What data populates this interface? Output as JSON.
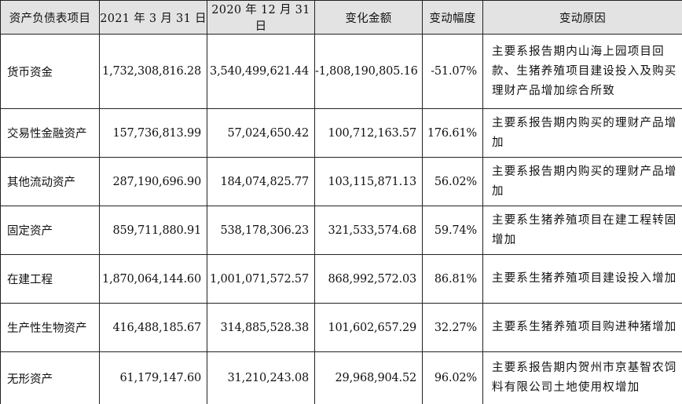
{
  "headers": [
    "资产负债表项目",
    "2021 年 3 月 31 日",
    "2020 年 12 月 31 日",
    "变化金额",
    "变动幅度",
    "变动原因"
  ],
  "rows": [
    {
      "item": "货币资金",
      "q1_2021": "1,732,308,816.28",
      "dec_2020": "3,540,499,621.44",
      "change": "-1,808,190,805.16",
      "pct": "-51.07%",
      "reason": "主要系报告期内山海上园项目回款、生猪养殖项目建设投入及购买理财产品增加综合所致"
    },
    {
      "item": "交易性金融资产",
      "q1_2021": "157,736,813.99",
      "dec_2020": "57,024,650.42",
      "change": "100,712,163.57",
      "pct": "176.61%",
      "reason": "主要系报告期内购买的理财产品增加"
    },
    {
      "item": "其他流动资产",
      "q1_2021": "287,190,696.90",
      "dec_2020": "184,074,825.77",
      "change": "103,115,871.13",
      "pct": "56.02%",
      "reason": "主要系报告期内购买的理财产品增加"
    },
    {
      "item": "固定资产",
      "q1_2021": "859,711,880.91",
      "dec_2020": "538,178,306.23",
      "change": "321,533,574.68",
      "pct": "59.74%",
      "reason": "主要系生猪养殖项目在建工程转固增加"
    },
    {
      "item": "在建工程",
      "q1_2021": "1,870,064,144.60",
      "dec_2020": "1,001,071,572.57",
      "change": "868,992,572.03",
      "pct": "86.81%",
      "reason": "主要系生猪养殖项目建设投入增加"
    },
    {
      "item": "生产性生物资产",
      "q1_2021": "416,488,185.67",
      "dec_2020": "314,885,528.38",
      "change": "101,602,657.29",
      "pct": "32.27%",
      "reason": "主要系生猪养殖项目购进种猪增加"
    },
    {
      "item": "无形资产",
      "q1_2021": "61,179,147.60",
      "dec_2020": "31,210,243.08",
      "change": "29,968,904.52",
      "pct": "96.02%",
      "reason": "主要系报告期内贺州市京基智农饲料有限公司土地使用权增加"
    }
  ]
}
